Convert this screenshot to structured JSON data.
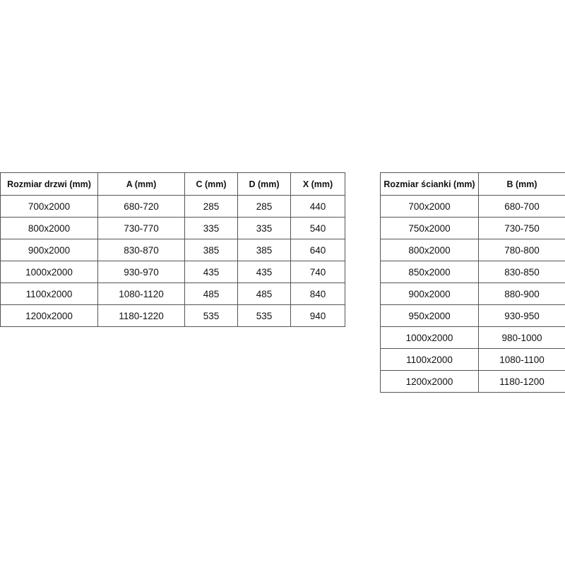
{
  "door_table": {
    "headers": [
      "Rozmiar drzwi (mm)",
      "A (mm)",
      "C (mm)",
      "D (mm)",
      "X (mm)"
    ],
    "rows": [
      [
        "700x2000",
        "680-720",
        "285",
        "285",
        "440"
      ],
      [
        "800x2000",
        "730-770",
        "335",
        "335",
        "540"
      ],
      [
        "900x2000",
        "830-870",
        "385",
        "385",
        "640"
      ],
      [
        "1000x2000",
        "930-970",
        "435",
        "435",
        "740"
      ],
      [
        "1100x2000",
        "1080-1120",
        "485",
        "485",
        "840"
      ],
      [
        "1200x2000",
        "1180-1220",
        "535",
        "535",
        "940"
      ]
    ]
  },
  "wall_table": {
    "headers": [
      "Rozmiar ścianki (mm)",
      "B (mm)"
    ],
    "rows": [
      [
        "700x2000",
        "680-700"
      ],
      [
        "750x2000",
        "730-750"
      ],
      [
        "800x2000",
        "780-800"
      ],
      [
        "850x2000",
        "830-850"
      ],
      [
        "900x2000",
        "880-900"
      ],
      [
        "950x2000",
        "930-950"
      ],
      [
        "1000x2000",
        "980-1000"
      ],
      [
        "1100x2000",
        "1080-1100"
      ],
      [
        "1200x2000",
        "1180-1200"
      ]
    ]
  }
}
